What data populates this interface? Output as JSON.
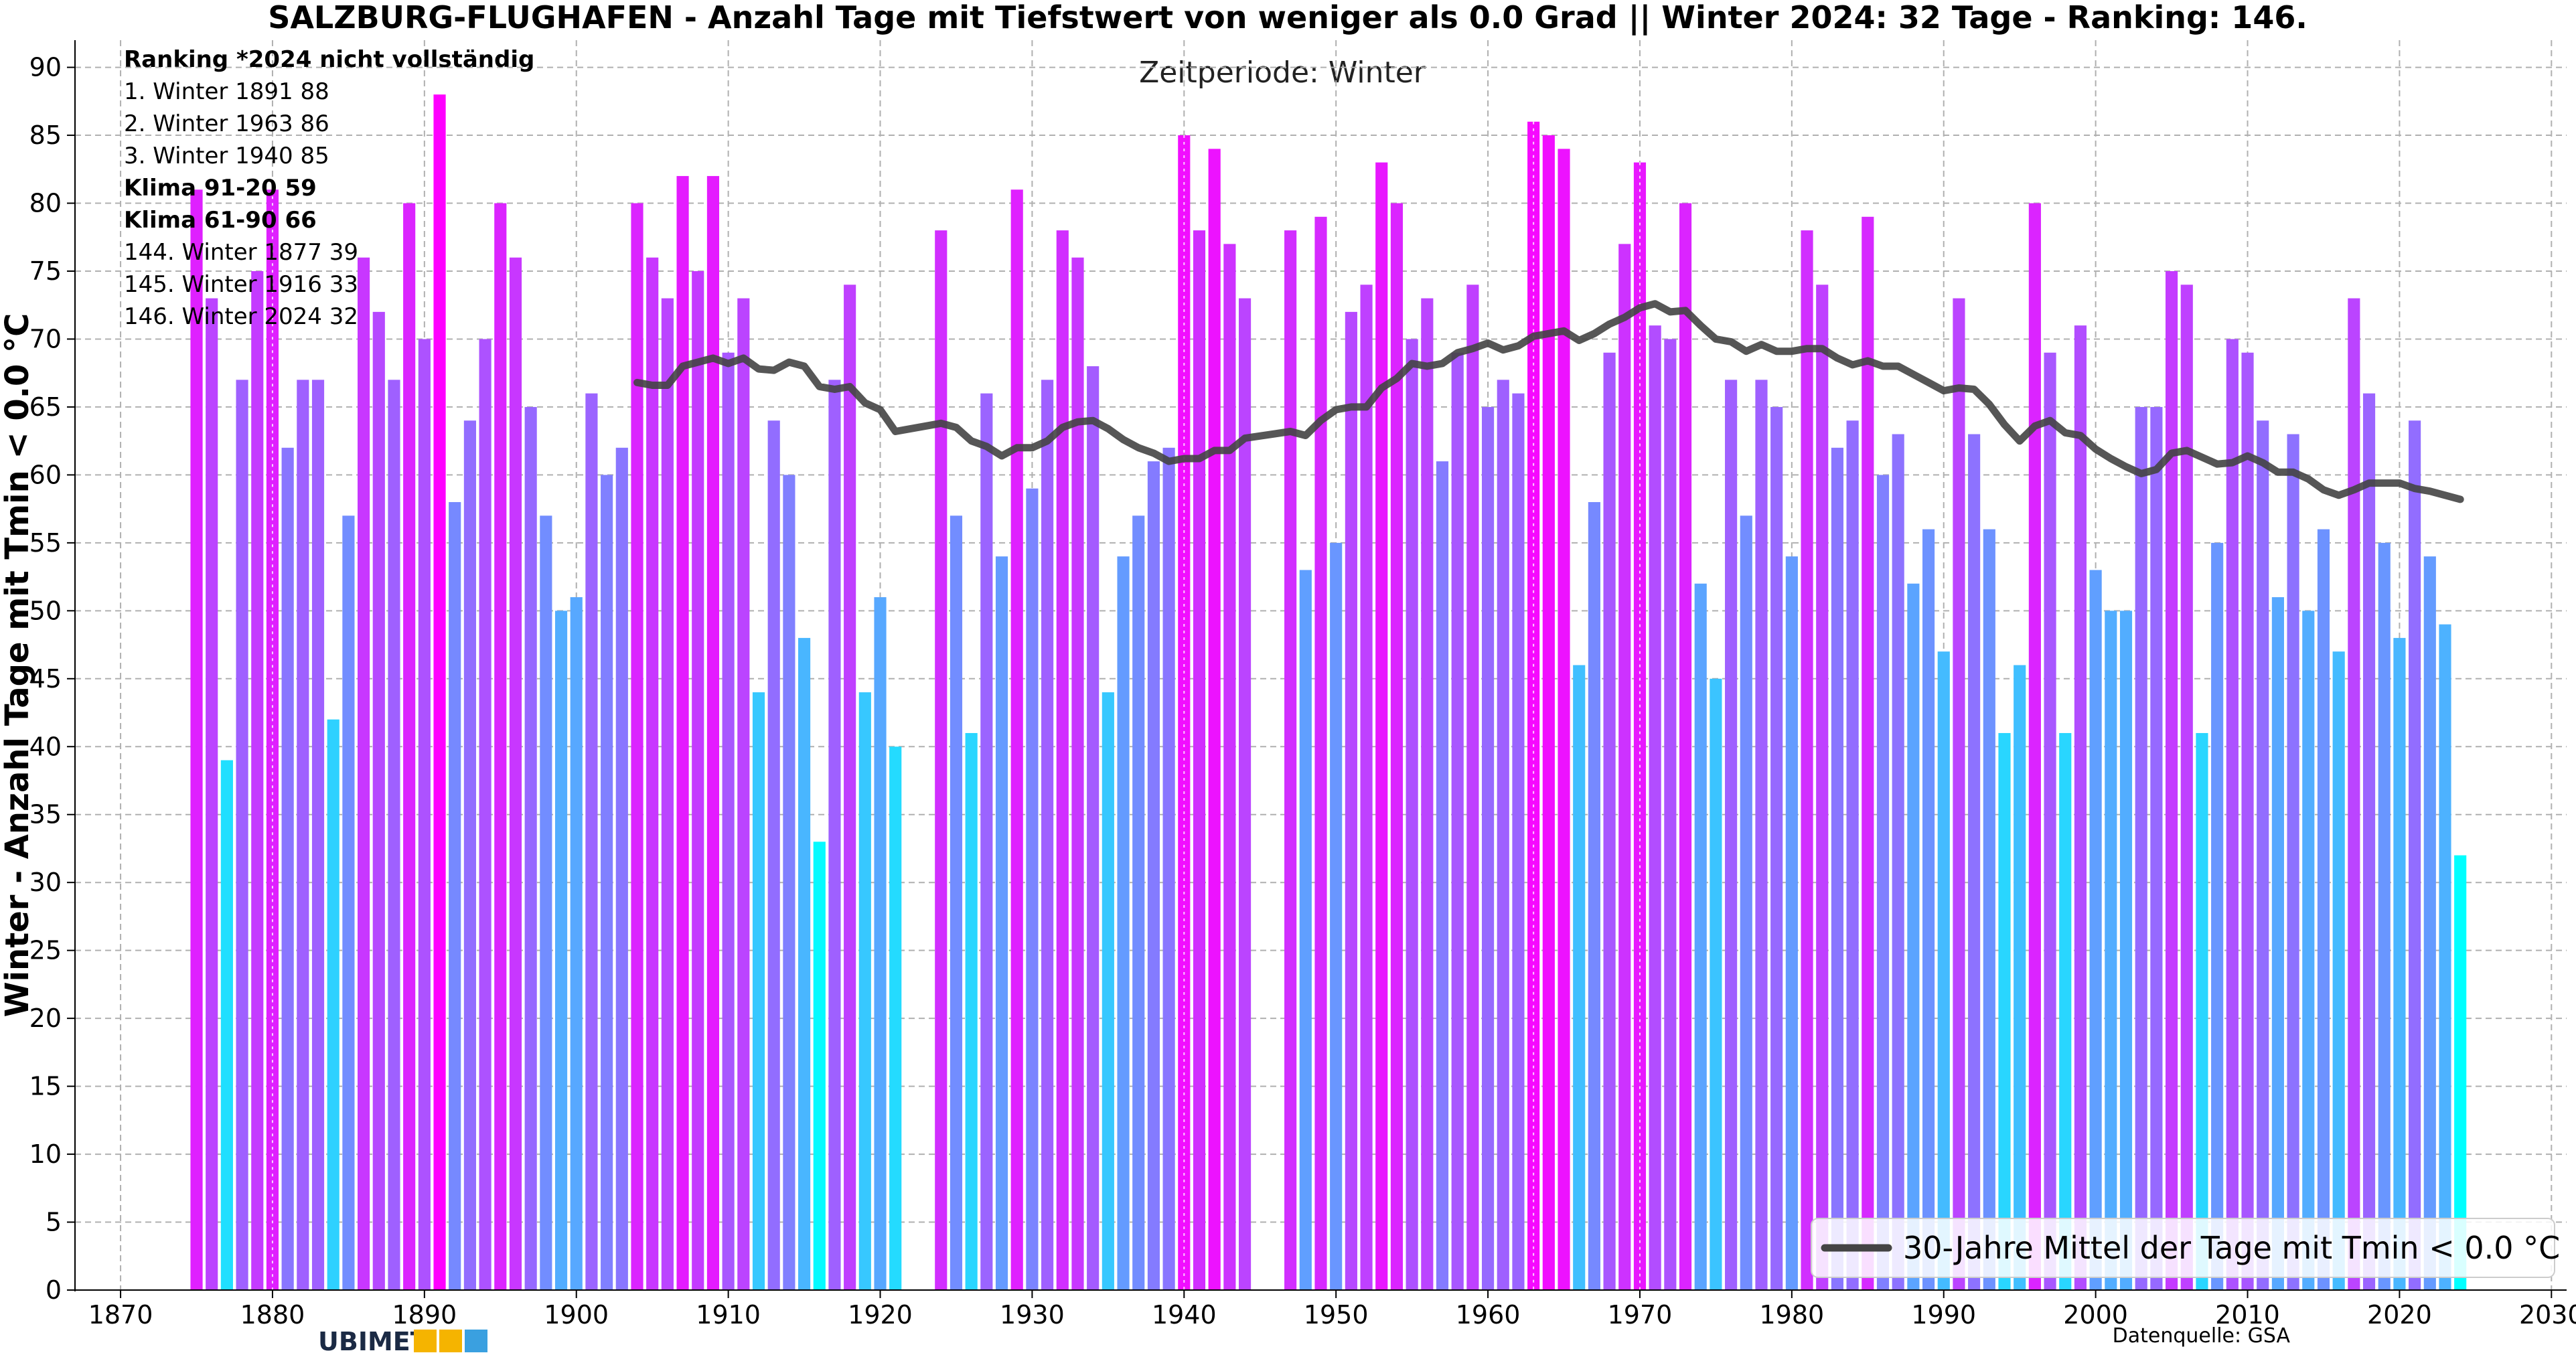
{
  "chart_data": {
    "type": "bar",
    "title": "SALZBURG-FLUGHAFEN - Anzahl Tage mit Tiefstwert von weniger als 0.0 Grad  || Winter 2024: 32 Tage - Ranking: 146.",
    "subtitle": "Zeitperiode: Winter",
    "ylabel": "Winter - Anzahl Tage mit Tmin < 0.0 °C",
    "xlabel": "",
    "xlim": [
      1867,
      2031
    ],
    "ylim": [
      0,
      92
    ],
    "x_ticks": [
      1870,
      1880,
      1890,
      1900,
      1910,
      1920,
      1930,
      1940,
      1950,
      1960,
      1970,
      1980,
      1990,
      2000,
      2010,
      2020,
      2030
    ],
    "y_ticks": [
      0,
      5,
      10,
      15,
      20,
      25,
      30,
      35,
      40,
      45,
      50,
      55,
      60,
      65,
      70,
      75,
      80,
      85,
      90
    ],
    "grid": true,
    "color_scale": {
      "low": "#00ffff",
      "high": "#ff00ff",
      "min_value": 32,
      "max_value": 88
    },
    "years": [
      1875,
      1876,
      1877,
      1878,
      1879,
      1880,
      1881,
      1882,
      1883,
      1884,
      1885,
      1886,
      1887,
      1888,
      1889,
      1890,
      1891,
      1892,
      1893,
      1894,
      1895,
      1896,
      1897,
      1898,
      1899,
      1900,
      1901,
      1902,
      1903,
      1904,
      1905,
      1906,
      1907,
      1908,
      1909,
      1910,
      1911,
      1912,
      1913,
      1914,
      1915,
      1916,
      1917,
      1918,
      1919,
      1920,
      1921,
      1924,
      1925,
      1926,
      1927,
      1928,
      1929,
      1930,
      1931,
      1932,
      1933,
      1934,
      1935,
      1936,
      1937,
      1938,
      1939,
      1940,
      1941,
      1942,
      1943,
      1944,
      1947,
      1948,
      1949,
      1950,
      1951,
      1952,
      1953,
      1954,
      1955,
      1956,
      1957,
      1958,
      1959,
      1960,
      1961,
      1962,
      1963,
      1964,
      1965,
      1966,
      1967,
      1968,
      1969,
      1970,
      1971,
      1972,
      1973,
      1974,
      1975,
      1976,
      1977,
      1978,
      1979,
      1980,
      1981,
      1982,
      1983,
      1984,
      1985,
      1986,
      1987,
      1988,
      1989,
      1990,
      1991,
      1992,
      1993,
      1994,
      1995,
      1996,
      1997,
      1998,
      1999,
      2000,
      2001,
      2002,
      2003,
      2004,
      2005,
      2006,
      2007,
      2008,
      2009,
      2010,
      2011,
      2012,
      2013,
      2014,
      2015,
      2016,
      2017,
      2018,
      2019,
      2020,
      2021,
      2022,
      2023,
      2024
    ],
    "values": [
      81,
      73,
      39,
      67,
      75,
      81,
      62,
      67,
      67,
      42,
      57,
      76,
      72,
      67,
      80,
      70,
      88,
      58,
      64,
      70,
      80,
      76,
      65,
      57,
      50,
      51,
      66,
      60,
      62,
      80,
      76,
      73,
      82,
      75,
      82,
      69,
      73,
      44,
      64,
      60,
      48,
      33,
      67,
      74,
      44,
      51,
      40,
      78,
      57,
      41,
      66,
      54,
      81,
      59,
      67,
      78,
      76,
      68,
      44,
      54,
      57,
      61,
      62,
      85,
      78,
      84,
      77,
      73,
      78,
      53,
      79,
      55,
      72,
      74,
      83,
      80,
      70,
      73,
      61,
      69,
      74,
      65,
      67,
      66,
      86,
      85,
      84,
      46,
      58,
      69,
      77,
      83,
      71,
      70,
      80,
      52,
      45,
      67,
      57,
      67,
      65,
      54,
      78,
      74,
      62,
      64,
      79,
      60,
      63,
      52,
      56,
      47,
      73,
      63,
      56,
      41,
      46,
      80,
      69,
      41,
      71,
      53,
      50,
      50,
      65,
      65,
      75,
      74,
      41,
      55,
      70,
      69,
      64,
      51,
      63,
      50,
      56,
      47,
      73,
      66,
      55,
      48,
      64,
      54,
      49,
      32
    ],
    "series": [
      {
        "name": "30-Jahre Mittel der Tage mit Tmin < 0.0 °C",
        "type": "line",
        "color": "#444444",
        "x": [
          1904,
          1905,
          1906,
          1907,
          1908,
          1909,
          1910,
          1911,
          1912,
          1913,
          1914,
          1915,
          1916,
          1917,
          1918,
          1919,
          1920,
          1921,
          1924,
          1925,
          1926,
          1927,
          1928,
          1929,
          1930,
          1931,
          1932,
          1933,
          1934,
          1935,
          1936,
          1937,
          1938,
          1939,
          1940,
          1941,
          1942,
          1943,
          1944,
          1947,
          1948,
          1949,
          1950,
          1951,
          1952,
          1953,
          1954,
          1955,
          1956,
          1957,
          1958,
          1959,
          1960,
          1961,
          1962,
          1963,
          1964,
          1965,
          1966,
          1967,
          1968,
          1969,
          1970,
          1971,
          1972,
          1973,
          1974,
          1975,
          1976,
          1977,
          1978,
          1979,
          1980,
          1981,
          1982,
          1983,
          1984,
          1985,
          1986,
          1987,
          1988,
          1989,
          1990,
          1991,
          1992,
          1993,
          1994,
          1995,
          1996,
          1997,
          1998,
          1999,
          2000,
          2001,
          2002,
          2003,
          2004,
          2005,
          2006,
          2007,
          2008,
          2009,
          2010,
          2011,
          2012,
          2013,
          2014,
          2015,
          2016,
          2017,
          2018,
          2019,
          2020,
          2021,
          2022,
          2023,
          2024
        ],
        "values": [
          66.8,
          66.6,
          66.6,
          68.0,
          68.3,
          68.6,
          68.2,
          68.6,
          67.8,
          67.7,
          68.3,
          68.0,
          66.5,
          66.3,
          66.5,
          65.3,
          64.8,
          63.2,
          63.8,
          63.5,
          62.5,
          62.1,
          61.4,
          62.0,
          62.0,
          62.5,
          63.5,
          63.9,
          64.0,
          63.4,
          62.6,
          62.0,
          61.6,
          61.0,
          61.2,
          61.2,
          61.8,
          61.8,
          62.7,
          63.2,
          62.9,
          64.0,
          64.8,
          65.0,
          65.0,
          66.4,
          67.1,
          68.2,
          68.0,
          68.2,
          69.0,
          69.3,
          69.7,
          69.2,
          69.5,
          70.2,
          70.4,
          70.6,
          69.9,
          70.4,
          71.1,
          71.6,
          72.3,
          72.6,
          72.0,
          72.1,
          71.0,
          70.0,
          69.8,
          69.1,
          69.6,
          69.1,
          69.1,
          69.3,
          69.3,
          68.6,
          68.1,
          68.4,
          68.0,
          68.0,
          67.4,
          66.8,
          66.2,
          66.4,
          66.3,
          65.2,
          63.7,
          62.5,
          63.6,
          64.0,
          63.1,
          62.9,
          61.9,
          61.2,
          60.6,
          60.1,
          60.4,
          61.6,
          61.8,
          61.3,
          60.8,
          60.9,
          61.4,
          60.9,
          60.2,
          60.2,
          59.7,
          58.9,
          58.5,
          58.9,
          59.4,
          59.4,
          59.4,
          59.0,
          58.8,
          58.5,
          58.2
        ]
      }
    ],
    "ranking_box": {
      "header": "Ranking  *2024 nicht vollständig",
      "lines": [
        {
          "text": "1.  Winter 1891  88",
          "bold": false
        },
        {
          "text": "2.  Winter 1963  86",
          "bold": false
        },
        {
          "text": "3.  Winter 1940  85",
          "bold": false
        },
        {
          "text": "Klima 91-20    59",
          "bold": true
        },
        {
          "text": "Klima 61-90    66",
          "bold": true
        },
        {
          "text": "144.  Winter 1877  39",
          "bold": false
        },
        {
          "text": "145.  Winter 1916  33",
          "bold": false
        },
        {
          "text": "146.  Winter 2024  32",
          "bold": false
        }
      ]
    },
    "highlighted_years": [
      1880,
      1940,
      1963,
      1970
    ],
    "legend": {
      "position": "bottom-right",
      "label": "30-Jahre Mittel der Tage mit Tmin < 0.0 °C"
    },
    "source": "Datenquelle: GSA",
    "logo": {
      "text": "UBIMET",
      "colors": [
        "#f5b400",
        "#3aa0e0"
      ]
    }
  }
}
